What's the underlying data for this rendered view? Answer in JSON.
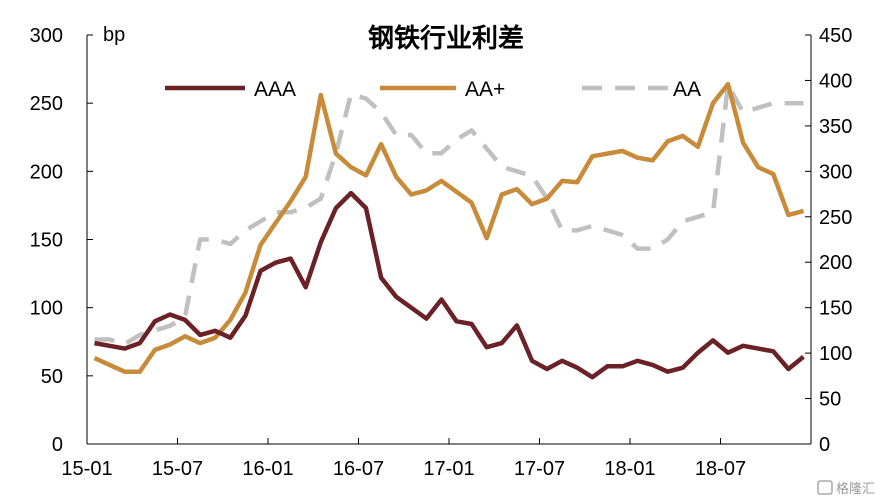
{
  "chart_data": {
    "type": "line",
    "title": "钢铁行业利差",
    "ylabel": "bp",
    "y_left": {
      "min": 0,
      "max": 300,
      "ticks": [
        0,
        50,
        100,
        150,
        200,
        250,
        300
      ]
    },
    "y_right": {
      "min": 0,
      "max": 450,
      "ticks": [
        0,
        50,
        100,
        150,
        200,
        250,
        300,
        350,
        400,
        450
      ]
    },
    "x_ticks": [
      "15-01",
      "15-07",
      "16-01",
      "16-07",
      "17-01",
      "17-07",
      "18-01",
      "18-07"
    ],
    "x_tick_index": [
      0,
      6,
      12,
      18,
      24,
      30,
      36,
      42
    ],
    "legend_position": "top",
    "series": [
      {
        "name": "AAA",
        "axis": "left",
        "color": "#6b2226",
        "dash": "none",
        "values": [
          74,
          72,
          70,
          74,
          90,
          95,
          91,
          80,
          83,
          78,
          94,
          127,
          133,
          136,
          115,
          148,
          173,
          184,
          173,
          122,
          108,
          100,
          92,
          106,
          90,
          88,
          71,
          74,
          87,
          61,
          55,
          61,
          56,
          49,
          57,
          57,
          61,
          58,
          53,
          56,
          67,
          76,
          67,
          72,
          70,
          68,
          55,
          64
        ]
      },
      {
        "name": "AA+",
        "axis": "left",
        "color": "#c78b3a",
        "dash": "none",
        "values": [
          63,
          58,
          53,
          53,
          69,
          73,
          79,
          74,
          78,
          91,
          111,
          146,
          162,
          178,
          196,
          256,
          213,
          203,
          197,
          220,
          196,
          183,
          186,
          193,
          185,
          177,
          151,
          183,
          187,
          176,
          180,
          193,
          192,
          211,
          213,
          215,
          210,
          208,
          222,
          226,
          218,
          250,
          264,
          221,
          203,
          198,
          168,
          171
        ]
      },
      {
        "name": "AA",
        "axis": "right",
        "color": "#c0c0c0",
        "dash": "20,13",
        "values": [
          115,
          115,
          110,
          120,
          125,
          130,
          140,
          225,
          225,
          220,
          235,
          245,
          255,
          255,
          260,
          270,
          320,
          385,
          380,
          365,
          340,
          340,
          320,
          320,
          335,
          345,
          325,
          305,
          300,
          295,
          270,
          235,
          235,
          240,
          235,
          230,
          215,
          215,
          225,
          245,
          250,
          255,
          395,
          365,
          370,
          375,
          375,
          375
        ]
      }
    ]
  },
  "watermark": "格隆汇"
}
